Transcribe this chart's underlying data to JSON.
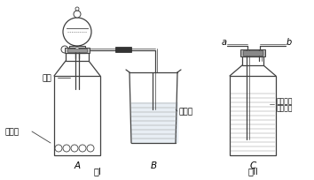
{
  "fig1_label": "图I",
  "fig2_label": "图II",
  "label_盐酸": "盐酸",
  "label_大理石": "大理石",
  "label_A": "A",
  "label_B": "B",
  "label_C": "C",
  "label_石灰水": "石灰水",
  "label_饱和1": "饱和碳酸",
  "label_饱和2": "氢钠溶液",
  "label_a": "a",
  "label_b": "b",
  "bg_color": "#ffffff",
  "line_color": "#404040",
  "text_color": "#000000"
}
